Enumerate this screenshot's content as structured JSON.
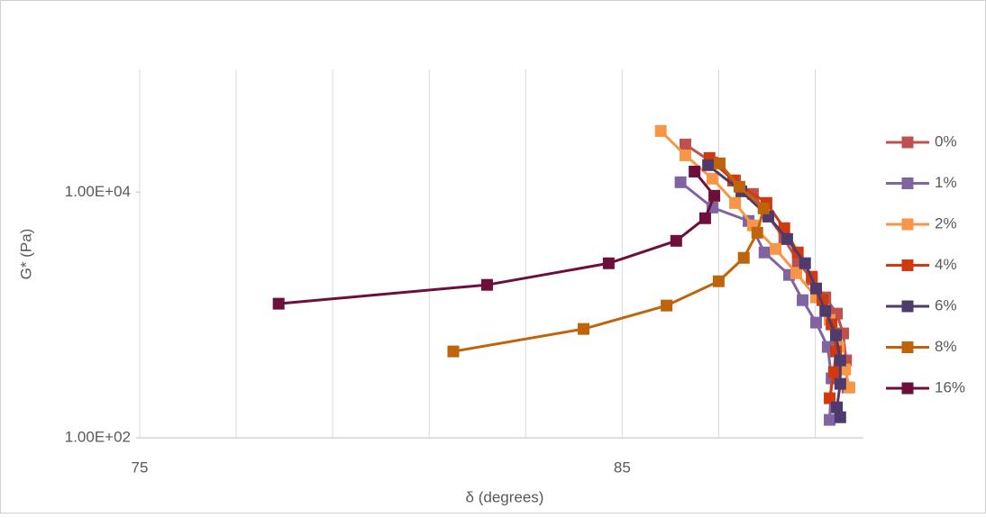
{
  "chart_data": {
    "type": "line",
    "xlabel": "δ (degrees)",
    "ylabel": "G* (Pa)",
    "xlim": [
      75,
      90
    ],
    "xticks": [
      75,
      85
    ],
    "xgrid": [
      75,
      77,
      79,
      81,
      83,
      85,
      87,
      89
    ],
    "ylim": [
      100,
      100000
    ],
    "ylog": true,
    "yticks": [
      {
        "value": 100,
        "label": "1.00E+02"
      },
      {
        "value": 10000,
        "label": "1.00E+04"
      }
    ],
    "legend": "right",
    "series": [
      {
        "name": "0%",
        "color": "#c0504d",
        "x": [
          86.31,
          86.87,
          87.34,
          87.71,
          88.03,
          88.36,
          88.64,
          88.93,
          89.21,
          89.45,
          89.58,
          89.64,
          89.67
        ],
        "values": [
          24450,
          17460,
          12450,
          9670,
          6340,
          4160,
          2730,
          1950,
          1390,
          1026,
          708,
          427,
          257
        ]
      },
      {
        "name": "1%",
        "color": "#8064a2",
        "x": [
          86.21,
          86.87,
          87.62,
          87.95,
          88.46,
          88.74,
          89.02,
          89.26,
          89.34,
          89.3
        ],
        "values": [
          12050,
          7500,
          5830,
          3230,
          2120,
          1321,
          867,
          550,
          305,
          140
        ]
      },
      {
        "name": "2%",
        "color": "#f79646",
        "x": [
          85.8,
          86.31,
          86.87,
          87.34,
          87.71,
          88.18,
          88.61,
          89.02,
          89.3,
          89.49,
          89.62,
          89.71
        ],
        "values": [
          31500,
          19950,
          12880,
          8170,
          5360,
          3450,
          2190,
          1390,
          912,
          550,
          360,
          257
        ]
      },
      {
        "name": "4%",
        "color": "#d03a0e",
        "x": [
          86.81,
          87.3,
          87.99,
          88.36,
          88.64,
          88.93,
          89.15,
          89.34,
          89.43,
          89.39,
          89.3
        ],
        "values": [
          18970,
          12450,
          8170,
          5090,
          3230,
          2050,
          1321,
          838,
          505,
          343,
          210
        ]
      },
      {
        "name": "6%",
        "color": "#4e3b6b",
        "x": [
          86.78,
          87.47,
          88.03,
          88.42,
          88.79,
          89.02,
          89.21,
          89.43,
          89.52,
          89.52,
          89.45,
          89.52
        ],
        "values": [
          16600,
          10170,
          6340,
          4160,
          2640,
          1644,
          1079,
          684,
          427,
          275,
          177,
          147
        ]
      },
      {
        "name": "8%",
        "color": "#c0640c",
        "x": [
          81.5,
          84.2,
          85.92,
          87.0,
          87.52,
          87.8,
          87.93,
          87.43,
          87.02
        ],
        "values": [
          505,
          770,
          1194,
          1882,
          2920,
          4680,
          7380,
          11070,
          17160
        ]
      },
      {
        "name": "16%",
        "color": "#6d0f3a",
        "x": [
          77.88,
          82.2,
          84.72,
          86.12,
          86.72,
          86.91,
          86.5
        ],
        "values": [
          1236,
          1760,
          2636,
          4018,
          6138,
          9350,
          14720
        ]
      }
    ]
  }
}
